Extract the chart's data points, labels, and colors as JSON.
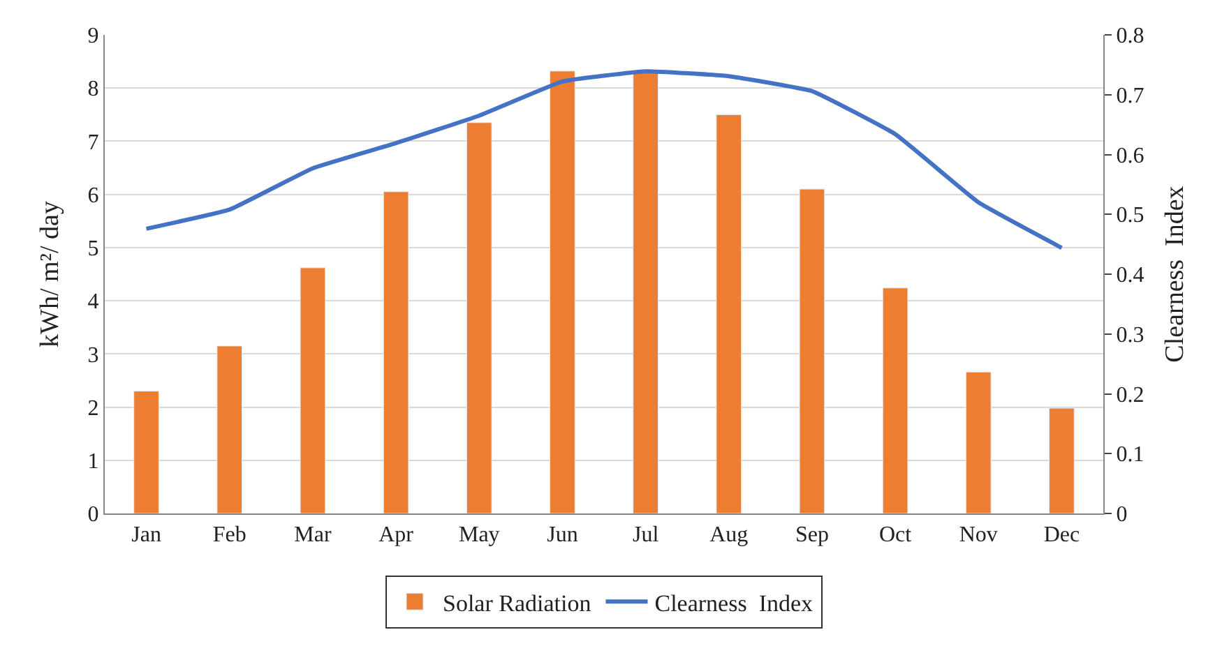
{
  "chart_data": {
    "type": "bar",
    "categories": [
      "Jan",
      "Feb",
      "Mar",
      "Apr",
      "May",
      "Jun",
      "Jul",
      "Aug",
      "Sep",
      "Oct",
      "Nov",
      "Dec"
    ],
    "ylabel": "kWh/ m²/ day",
    "y2label": "Clearness  Index",
    "ylim": [
      0,
      9
    ],
    "yticks": [
      0,
      1,
      2,
      3,
      4,
      5,
      6,
      7,
      8,
      9
    ],
    "y2lim": [
      0,
      0.8
    ],
    "y2ticks": [
      {
        "value": 0,
        "label": "0"
      },
      {
        "value": 0.1,
        "label": "0.1"
      },
      {
        "value": 0.2,
        "label": "0.2"
      },
      {
        "value": 0.3,
        "label": "0.3"
      },
      {
        "value": 0.4,
        "label": "0.4"
      },
      {
        "value": 0.5,
        "label": "0.5"
      },
      {
        "value": 0.6,
        "label": "0.6"
      },
      {
        "value": 0.7,
        "label": "0.7"
      },
      {
        "value": 0.8,
        "label": "0.8"
      }
    ],
    "grid": "y",
    "legend": "bottom",
    "series": [
      {
        "name": "Solar Radiation",
        "color": "#ed7d31",
        "values": [
          2.3,
          3.15,
          4.62,
          6.05,
          7.35,
          8.32,
          8.3,
          7.5,
          6.1,
          4.24,
          2.66,
          1.98
        ]
      },
      {
        "name": "Clearness  Index",
        "type": "line",
        "axis": "y2",
        "color": "#4472c4",
        "values": [
          0.476,
          0.508,
          0.577,
          0.619,
          0.665,
          0.722,
          0.739,
          0.731,
          0.706,
          0.634,
          0.52,
          0.444
        ]
      }
    ]
  }
}
